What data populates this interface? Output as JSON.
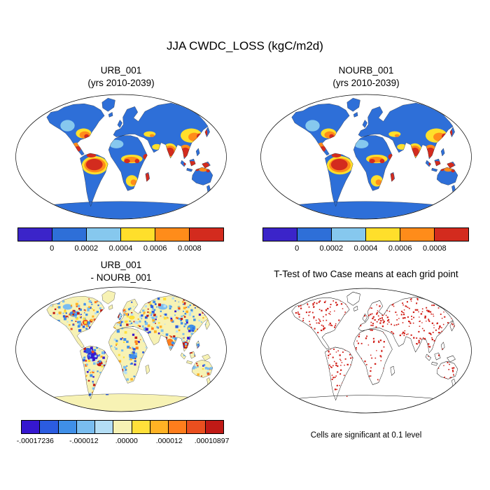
{
  "title": "JJA CWDC_LOSS (kgC/m2d)",
  "panels": {
    "top_left": {
      "title_line1": "URB_001",
      "title_line2": "(yrs 2010-2039)"
    },
    "top_right": {
      "title_line1": "NOURB_001",
      "title_line2": "(yrs 2010-2039)"
    },
    "bottom_left": {
      "title_line1": "URB_001",
      "title_line2": "- NOURB_001"
    },
    "bottom_right": {
      "title": "T-Test of two Case means at each grid point",
      "caption": "Cells are significant at 0.1 level"
    }
  },
  "colorbars": {
    "mean": {
      "colors": [
        "#3b24c9",
        "#2e6fd8",
        "#86c8ee",
        "#ffdf2b",
        "#ff8c1a",
        "#d32b1e"
      ],
      "ticks": [
        {
          "label": "0",
          "pos": 0.1667
        },
        {
          "label": "0.0002",
          "pos": 0.3333
        },
        {
          "label": "0.0004",
          "pos": 0.5
        },
        {
          "label": "0.0006",
          "pos": 0.6667
        },
        {
          "label": "0.0008",
          "pos": 0.8333
        }
      ]
    },
    "diff": {
      "colors": [
        "#3517cf",
        "#2b5ce0",
        "#3f8fe8",
        "#79bdf0",
        "#b4def5",
        "#f7f2b4",
        "#ffe03a",
        "#ffb224",
        "#ff7d1c",
        "#ea4f1f",
        "#c01a16"
      ],
      "ticks": [
        {
          "label": "-.00017236",
          "pos": 0.07
        },
        {
          "label": "-.000012",
          "pos": 0.31
        },
        {
          "label": ".00000",
          "pos": 0.52
        },
        {
          "label": ".000012",
          "pos": 0.73
        },
        {
          "label": ".00010897",
          "pos": 0.94
        }
      ]
    }
  },
  "map_colors": {
    "ocean": "#ffffff",
    "outline": "#000000",
    "ttest_dot": "#d11d16"
  },
  "chart_data": [
    {
      "type": "heatmap",
      "panel": "top-left",
      "title": "URB_001 (yrs 2010-2039)",
      "season": "JJA",
      "variable": "CWDC_LOSS",
      "units": "kgC/m2d",
      "projection": "robinson world map",
      "colorbar_boundaries": [
        0,
        0.0002,
        0.0004,
        0.0006,
        0.0008
      ]
    },
    {
      "type": "heatmap",
      "panel": "top-right",
      "title": "NOURB_001 (yrs 2010-2039)",
      "season": "JJA",
      "variable": "CWDC_LOSS",
      "units": "kgC/m2d",
      "projection": "robinson world map",
      "colorbar_boundaries": [
        0,
        0.0002,
        0.0004,
        0.0006,
        0.0008
      ]
    },
    {
      "type": "heatmap",
      "panel": "bottom-left",
      "title": "URB_001 - NOURB_001",
      "variable": "CWDC_LOSS difference",
      "units": "kgC/m2d",
      "projection": "robinson world map",
      "colorbar_boundaries": [
        -0.00017236,
        -1.2e-05,
        0,
        1.2e-05,
        0.00010897
      ]
    },
    {
      "type": "scatter",
      "panel": "bottom-right",
      "title": "T-Test of two Case means at each grid point",
      "note": "Cells are significant at 0.1 level",
      "marker_color": "#d11d16"
    }
  ]
}
